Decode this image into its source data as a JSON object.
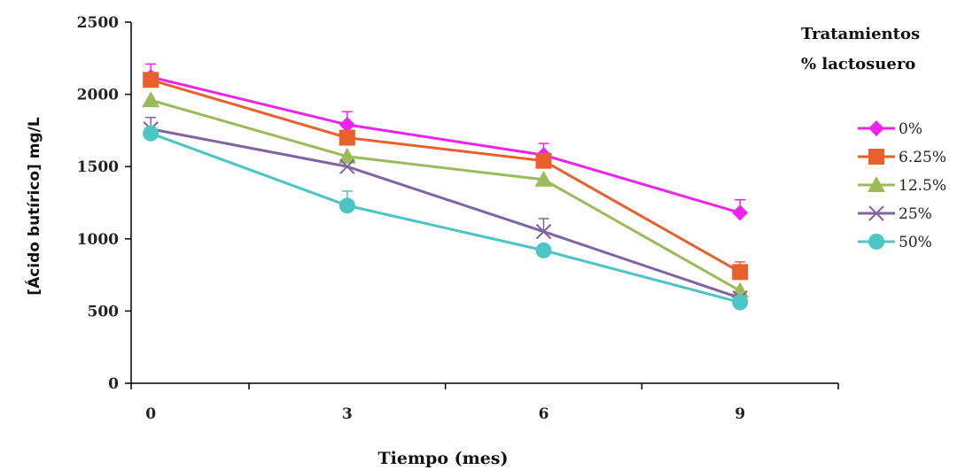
{
  "chart_data": {
    "type": "line",
    "x": [
      0,
      3,
      6,
      9
    ],
    "xlabel": "Tiempo (mes)",
    "ylabel": "[Ácido butírico] mg/L",
    "ylim": [
      0,
      2500
    ],
    "yticks": [
      0,
      500,
      1000,
      1500,
      2000,
      2500
    ],
    "xticks": [
      0,
      3,
      6,
      9
    ],
    "grid": false,
    "legend_title": [
      "Tratamientos",
      "% lactosuero"
    ],
    "legend_position": "right",
    "series": [
      {
        "name": "0%",
        "values": [
          2120,
          1790,
          1580,
          1180
        ],
        "errors": [
          90,
          90,
          80,
          90
        ],
        "color": "#ee22ee",
        "marker": "diamond"
      },
      {
        "name": "6.25%",
        "values": [
          2100,
          1700,
          1540,
          770
        ],
        "errors": [
          0,
          0,
          0,
          70
        ],
        "color": "#e8602c",
        "marker": "square"
      },
      {
        "name": "12.5%",
        "values": [
          1960,
          1570,
          1410,
          640
        ],
        "errors": [
          0,
          0,
          0,
          0
        ],
        "color": "#9bbb59",
        "marker": "triangle"
      },
      {
        "name": "25%",
        "values": [
          1760,
          1500,
          1050,
          590
        ],
        "errors": [
          80,
          0,
          90,
          0
        ],
        "color": "#8064a2",
        "marker": "x"
      },
      {
        "name": "50%",
        "values": [
          1730,
          1230,
          920,
          560
        ],
        "errors": [
          0,
          100,
          0,
          0
        ],
        "color": "#4bc5c5",
        "marker": "circle"
      }
    ]
  }
}
